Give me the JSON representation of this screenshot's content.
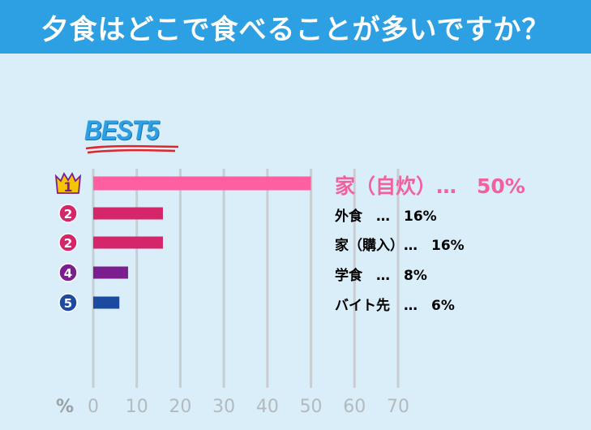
{
  "header": {
    "title": "夕食はどこで食べることが多いですか？"
  },
  "badge": {
    "text": "BEST5"
  },
  "colors": {
    "background": "#d9eef8",
    "title_bar": "#2d9fe3",
    "grid": "#c8cdd3",
    "axis_text": "#b4b9be"
  },
  "chart_data": {
    "type": "bar",
    "orientation": "horizontal",
    "title": "夕食はどこで食べることが多いですか？",
    "xlabel": "%",
    "xlim": [
      0,
      70
    ],
    "xticks": [
      0,
      10,
      20,
      30,
      40,
      50,
      60,
      70
    ],
    "grid": true,
    "categories": [
      "家（自炊）",
      "外食",
      "家（購入）",
      "学食",
      "バイト先"
    ],
    "values": [
      50,
      16,
      16,
      8,
      6
    ],
    "ranks": [
      "1",
      "2",
      "2",
      "4",
      "5"
    ],
    "labels": [
      "家（自炊）…　50%",
      "外食　…　16%",
      "家（購入）…　16%",
      "学食　…　8%",
      "バイト先　…　6%"
    ],
    "bar_colors": [
      "#ff5fa0",
      "#d6266a",
      "#d6266a",
      "#7b1f8e",
      "#1b4aa0"
    ],
    "rank_colors": [
      "#f5c400",
      "#d6266a",
      "#d6266a",
      "#7b1f8e",
      "#1b4aa0"
    ]
  }
}
